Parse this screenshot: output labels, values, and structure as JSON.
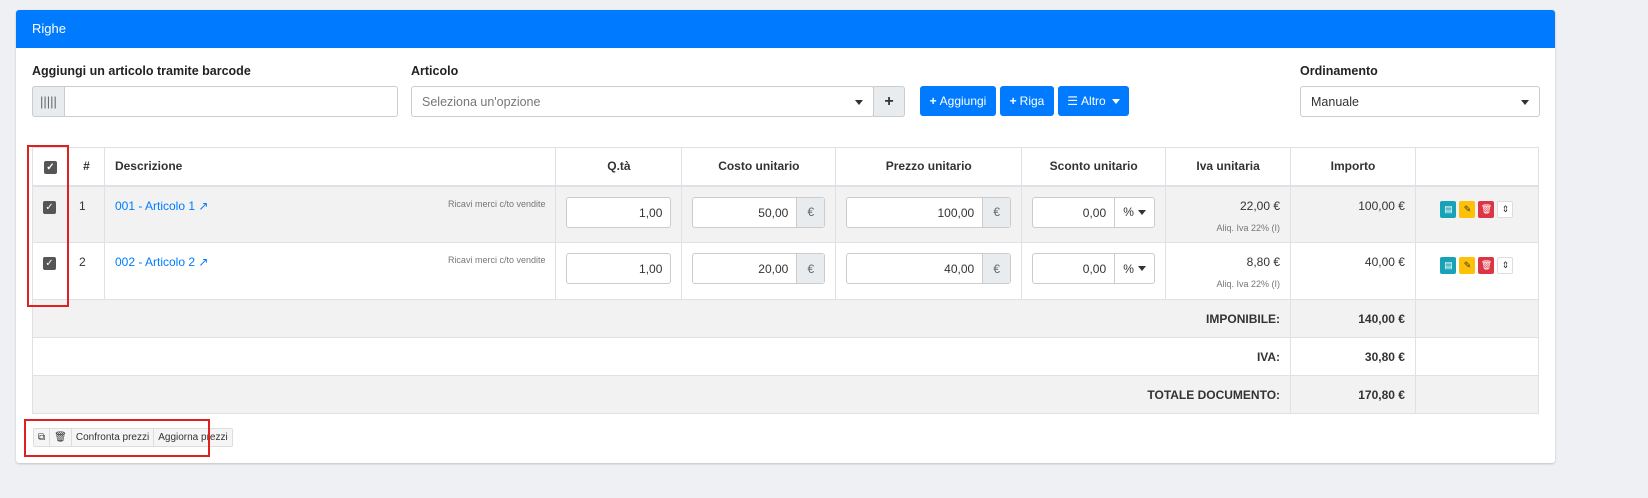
{
  "card": {
    "title": "Righe"
  },
  "barcode": {
    "label": "Aggiungi un articolo tramite barcode",
    "value": "",
    "icon": "barcode-icon"
  },
  "articolo": {
    "label": "Articolo",
    "placeholder": "Seleziona un'opzione",
    "add": "+"
  },
  "buttons": {
    "aggiungi": "Aggiungi",
    "riga": "Riga",
    "altro": "Altro"
  },
  "ordinamento": {
    "label": "Ordinamento",
    "value": "Manuale"
  },
  "table": {
    "headers": [
      "#",
      "Descrizione",
      "Q.tà",
      "Costo unitario",
      "Prezzo unitario",
      "Sconto unitario",
      "Iva unitaria",
      "Importo"
    ],
    "rows": [
      {
        "n": "1",
        "desc": "001 - Articolo 1",
        "account": "Ricavi merci c/to vendite",
        "qty": "1,00",
        "cost": "50,00",
        "price": "100,00",
        "discount": "0,00",
        "discount_type": "%",
        "iva": "22,00 €",
        "iva_note": "Aliq. Iva 22% (I)",
        "amount": "100,00 €",
        "checked": true
      },
      {
        "n": "2",
        "desc": "002 - Articolo 2",
        "account": "Ricavi merci c/to vendite",
        "qty": "1,00",
        "cost": "20,00",
        "price": "40,00",
        "discount": "0,00",
        "discount_type": "%",
        "iva": "8,80 €",
        "iva_note": "Aliq. Iva 22% (I)",
        "amount": "40,00 €",
        "checked": true
      }
    ],
    "currency": "€",
    "totals": [
      {
        "label": "IMPONIBILE:",
        "value": "140,00 €"
      },
      {
        "label": "IVA:",
        "value": "30,80 €"
      },
      {
        "label": "TOTALE DOCUMENTO:",
        "value": "170,80 €"
      }
    ]
  },
  "bulk": {
    "compare": "Confronta prezzi",
    "update": "Aggiorna prezzi"
  },
  "colors": {
    "primary": "#007bff",
    "info": "#17a2b8",
    "warning": "#ffc107",
    "danger": "#dc3545",
    "highlight": "#e02020"
  }
}
